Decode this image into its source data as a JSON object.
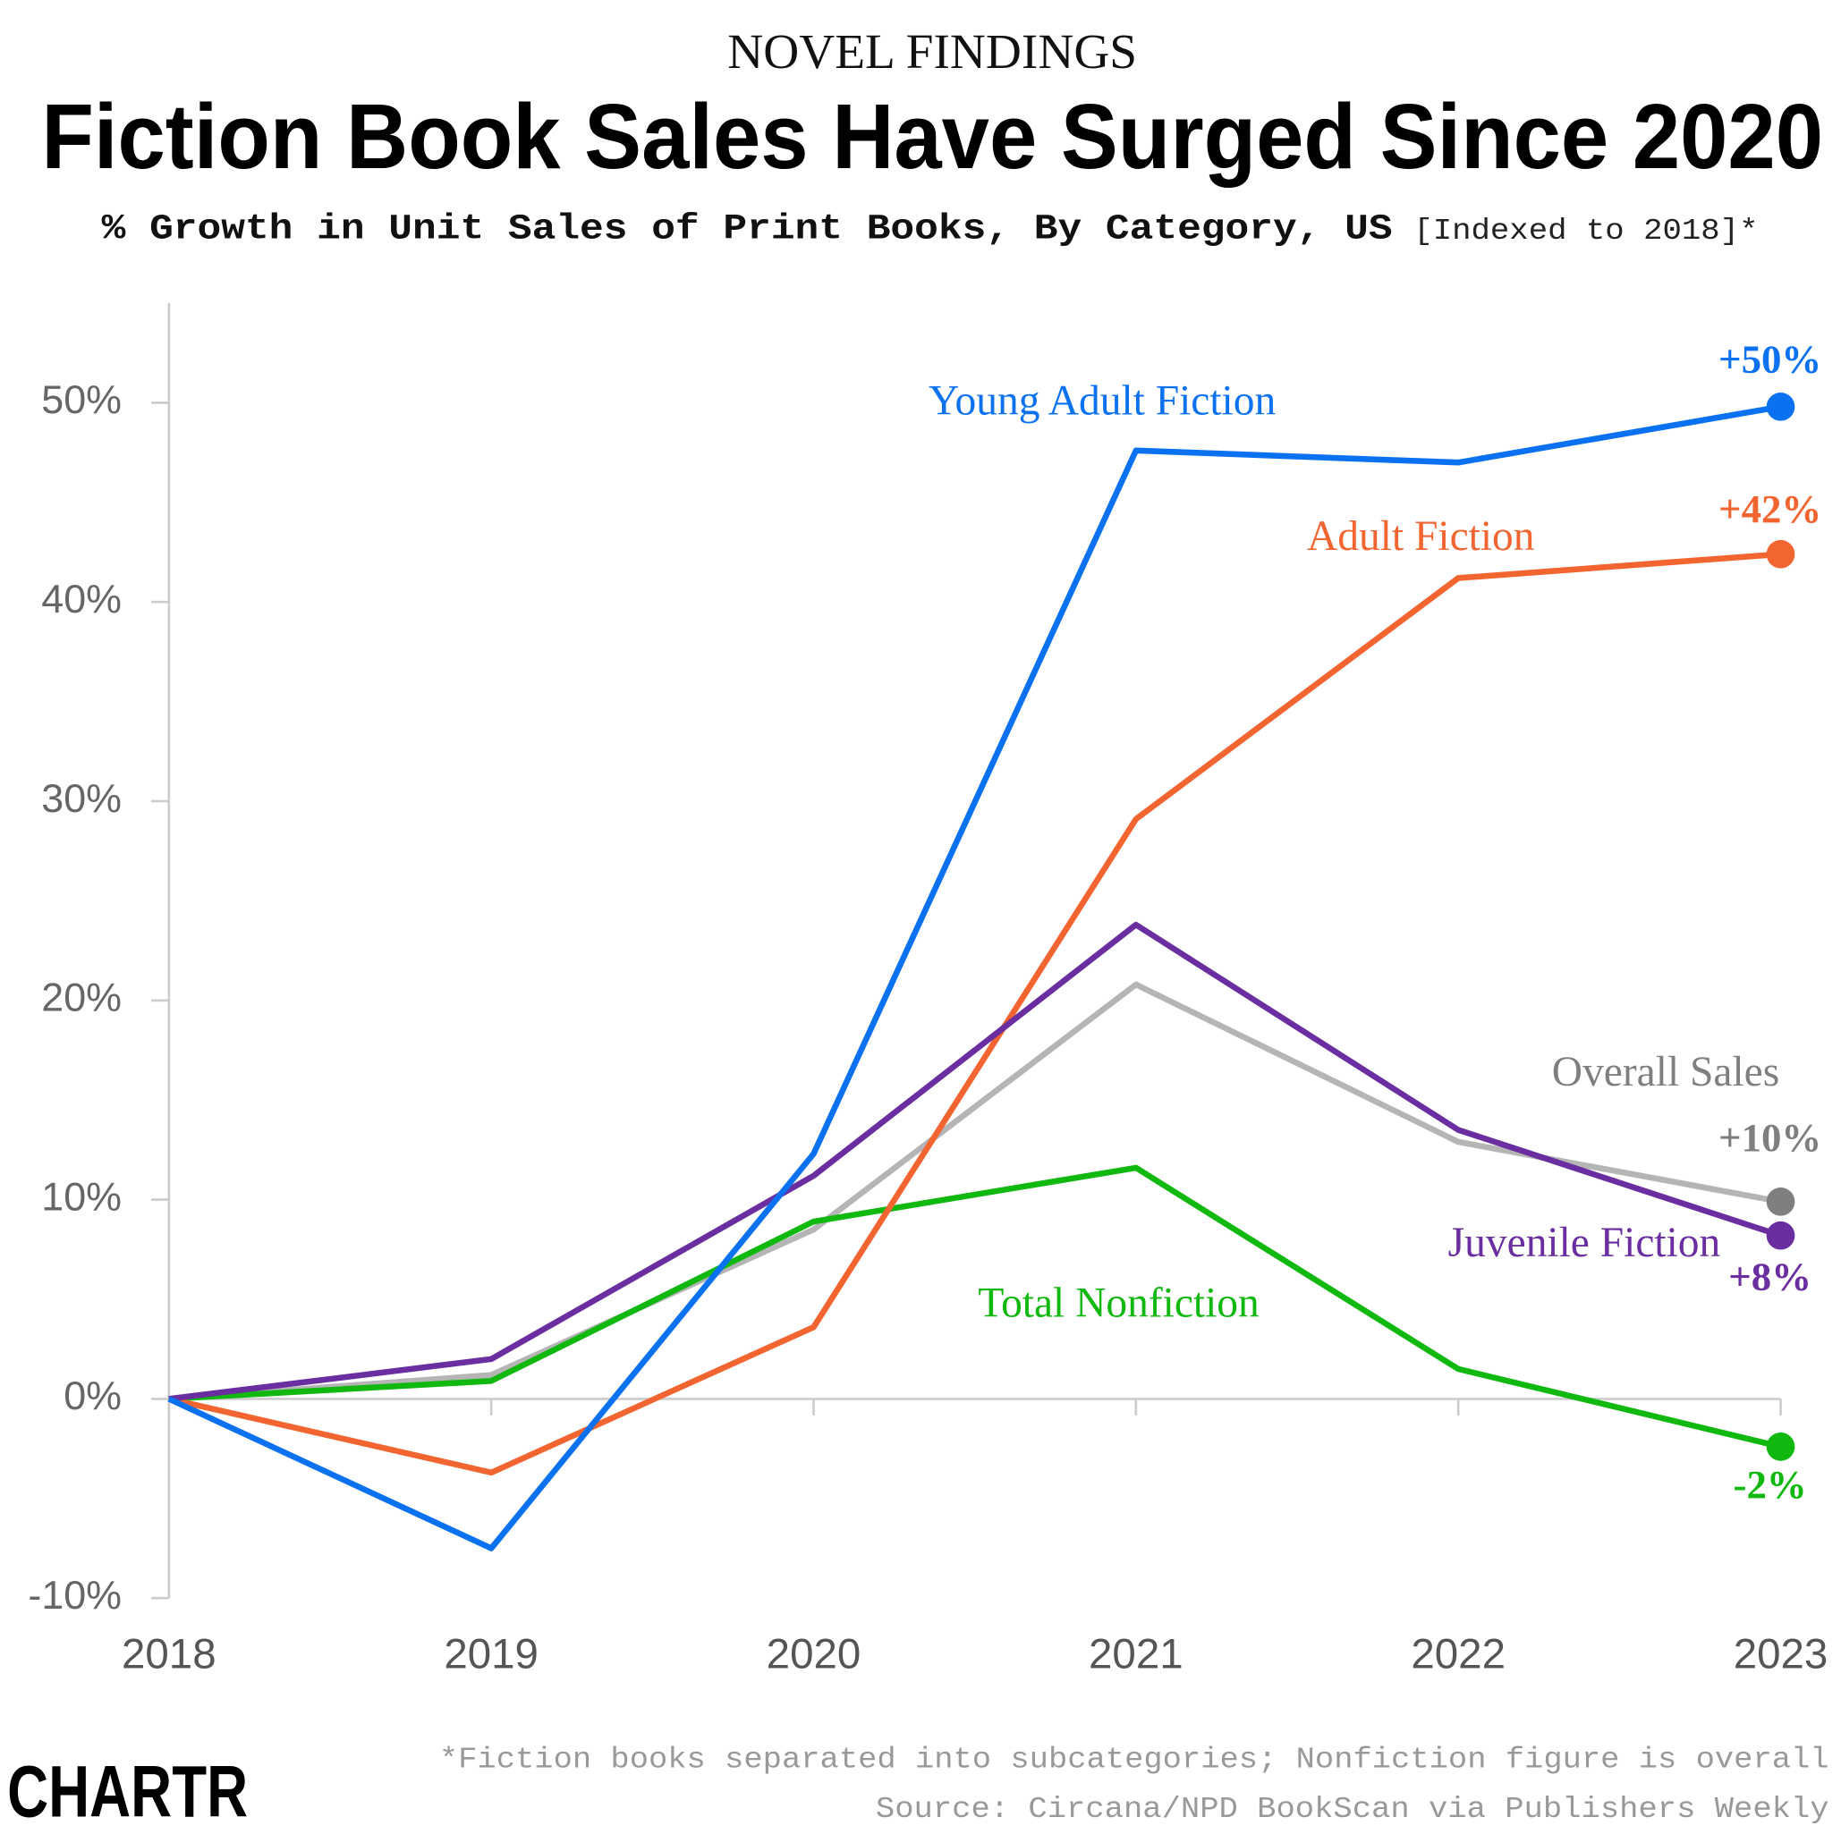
{
  "chart_data": {
    "type": "line",
    "kicker": "NOVEL FINDINGS",
    "title": "Fiction Book Sales Have Surged Since 2020",
    "subtitle": "% Growth in Unit Sales of Print Books, By Category, US",
    "subtitle_note": "[Indexed to 2018]*",
    "footnote": "*Fiction books separated into subcategories; Nonfiction figure is overall",
    "source": "Source: Circana/NPD BookScan via Publishers Weekly",
    "brand": "CHARTR",
    "x": [
      2018,
      2019,
      2020,
      2021,
      2022,
      2023
    ],
    "xlim": [
      2018,
      2023
    ],
    "xticks": [
      2018,
      2019,
      2020,
      2021,
      2022,
      2023
    ],
    "ylim": [
      -10,
      55
    ],
    "yticks": [
      {
        "value": -10,
        "label": "-10%"
      },
      {
        "value": 0,
        "label": "0%"
      },
      {
        "value": 10,
        "label": "10%"
      },
      {
        "value": 20,
        "label": "20%"
      },
      {
        "value": 30,
        "label": "30%"
      },
      {
        "value": 40,
        "label": "40%"
      },
      {
        "value": 50,
        "label": "50%"
      }
    ],
    "series": [
      {
        "name": "Overall Sales",
        "color": "#b5b5b5",
        "label_color": "#7f7f7f",
        "values": [
          0,
          1.2,
          8.5,
          20.8,
          12.9,
          9.9
        ],
        "value_labels": [
          null,
          null,
          null,
          null,
          null,
          "+10%"
        ]
      },
      {
        "name": "Total Nonfiction",
        "color": "#10b810",
        "values": [
          0,
          0.9,
          8.9,
          11.6,
          1.5,
          -2.4
        ],
        "value_labels": [
          null,
          null,
          null,
          null,
          null,
          "-2%"
        ]
      },
      {
        "name": "Adult Fiction",
        "color": "#f26530",
        "values": [
          0,
          -3.7,
          3.6,
          29.1,
          41.2,
          42.4
        ],
        "value_labels": [
          null,
          null,
          null,
          null,
          null,
          "+42%"
        ]
      },
      {
        "name": "Juvenile Fiction",
        "color": "#6a2ea0",
        "values": [
          0,
          2.0,
          11.2,
          23.8,
          13.5,
          8.2
        ],
        "value_labels": [
          null,
          null,
          null,
          null,
          null,
          "+8%"
        ]
      },
      {
        "name": "Young Adult Fiction",
        "color": "#0a72f0",
        "values": [
          0,
          -7.5,
          12.3,
          47.6,
          47.0,
          49.8
        ],
        "value_labels": [
          null,
          null,
          null,
          null,
          null,
          "+50%"
        ]
      }
    ]
  }
}
